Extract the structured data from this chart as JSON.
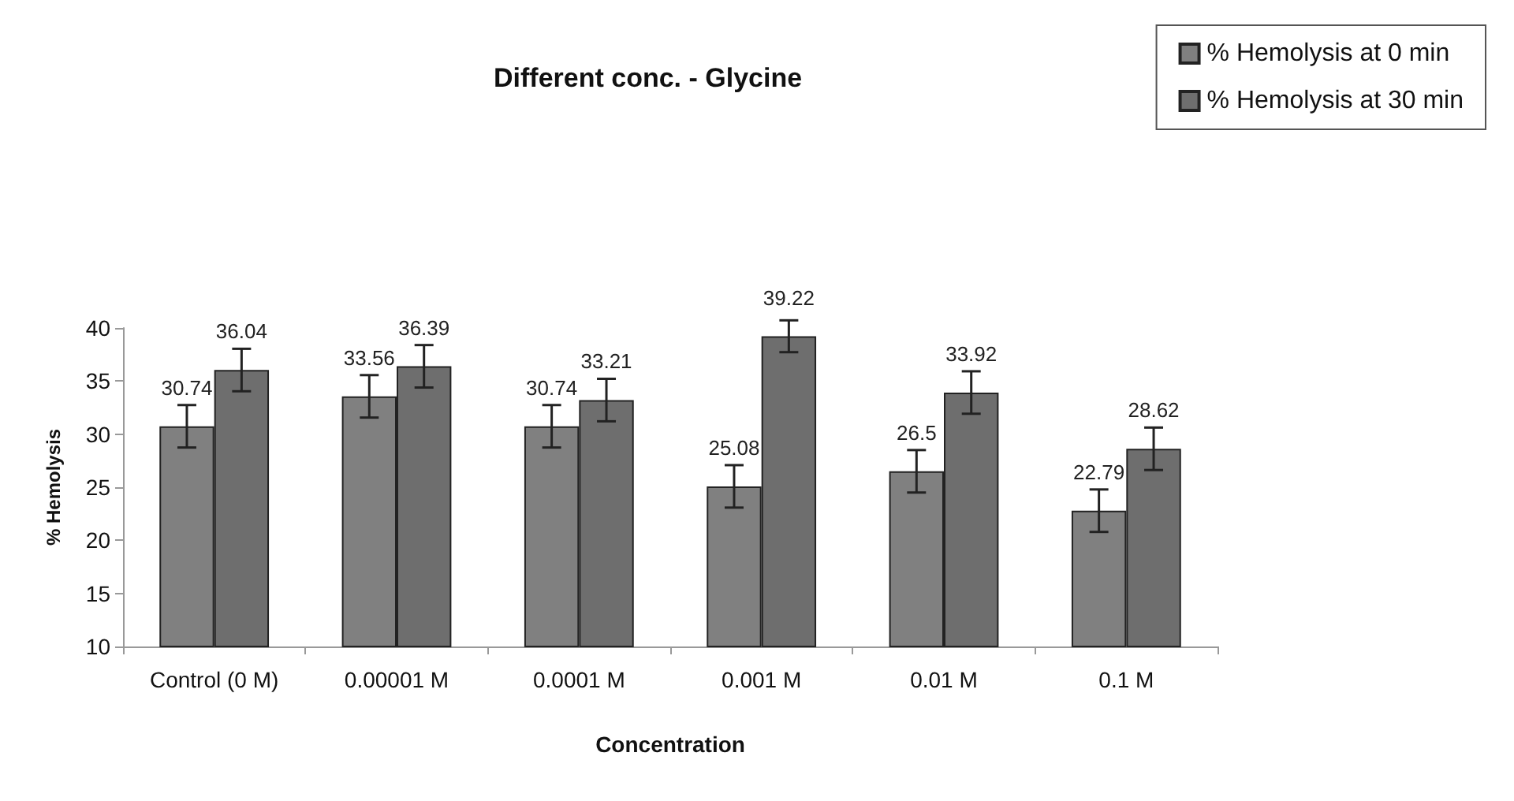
{
  "chart_data": {
    "type": "bar",
    "title": "Different conc. - Glycine",
    "xlabel": "Concentration",
    "ylabel": "% Hemolysis",
    "categories": [
      "Control (0 M)",
      "0.00001 M",
      "0.0001 M",
      "0.001 M",
      "0.01 M",
      "0.1 M"
    ],
    "series": [
      {
        "name": "% Hemolysis at 0 min",
        "color": "#808080",
        "values": [
          30.74,
          33.56,
          30.74,
          25.08,
          26.5,
          22.79
        ],
        "errors": [
          2,
          2,
          2,
          2,
          2,
          2
        ]
      },
      {
        "name": "% Hemolysis at 30 min",
        "color": "#6e6e6e",
        "values": [
          36.04,
          36.39,
          33.21,
          39.22,
          33.92,
          28.62
        ],
        "errors": [
          2,
          2,
          2,
          1.5,
          2,
          2
        ]
      }
    ],
    "ylim": [
      10,
      40
    ],
    "yticks": [
      10,
      15,
      20,
      25,
      30,
      35,
      40
    ],
    "grid": false,
    "legend": "top right",
    "data_labels": true
  }
}
